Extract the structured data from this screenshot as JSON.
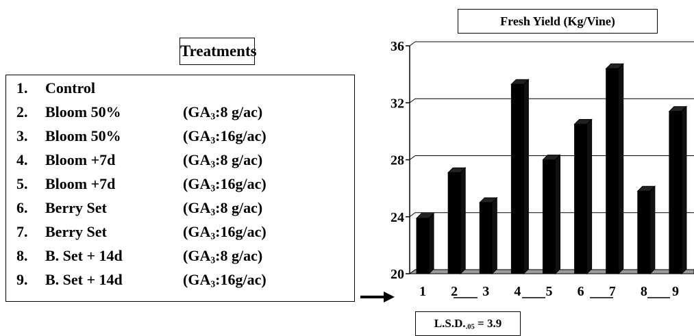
{
  "treatments": {
    "title": "Treatments",
    "items": [
      {
        "num": "1.",
        "label": "Control",
        "ga": ""
      },
      {
        "num": "2.",
        "label": "Bloom 50%",
        "ga": "(GA:8 g/ac)"
      },
      {
        "num": "3.",
        "label": "Bloom 50%",
        "ga": "(GA:16g/ac)"
      },
      {
        "num": "4.",
        "label": "Bloom +7d",
        "ga": "(GA:8 g/ac)"
      },
      {
        "num": "5.",
        "label": "Bloom +7d",
        "ga": "(GA:16g/ac)"
      },
      {
        "num": "6.",
        "label": "Berry Set",
        "ga": "(GA:8 g/ac)"
      },
      {
        "num": "7.",
        "label": "Berry Set",
        "ga": "(GA:16g/ac)"
      },
      {
        "num": "8.",
        "label": "B. Set + 14d",
        "ga": "(GA:8 g/ac)"
      },
      {
        "num": "9.",
        "label": "B. Set + 14d",
        "ga": "(GA:16g/ac)"
      }
    ]
  },
  "lsd": {
    "prefix": "L.S.D.",
    "sub": ".05",
    "suffix": " = 3.9"
  },
  "chart_data": {
    "type": "bar",
    "title": "Fresh Yield (Kg/Vine)",
    "xlabel": "",
    "ylabel": "",
    "categories": [
      "1",
      "2",
      "3",
      "4",
      "5",
      "6",
      "7",
      "8",
      "9"
    ],
    "values": [
      23.9,
      27.1,
      25.0,
      33.3,
      28.0,
      30.5,
      34.4,
      25.8,
      31.4
    ],
    "ylim": [
      20,
      36
    ],
    "yticks": [
      20,
      24,
      28,
      32,
      36
    ],
    "grid": true,
    "bar_color": "#000000"
  }
}
